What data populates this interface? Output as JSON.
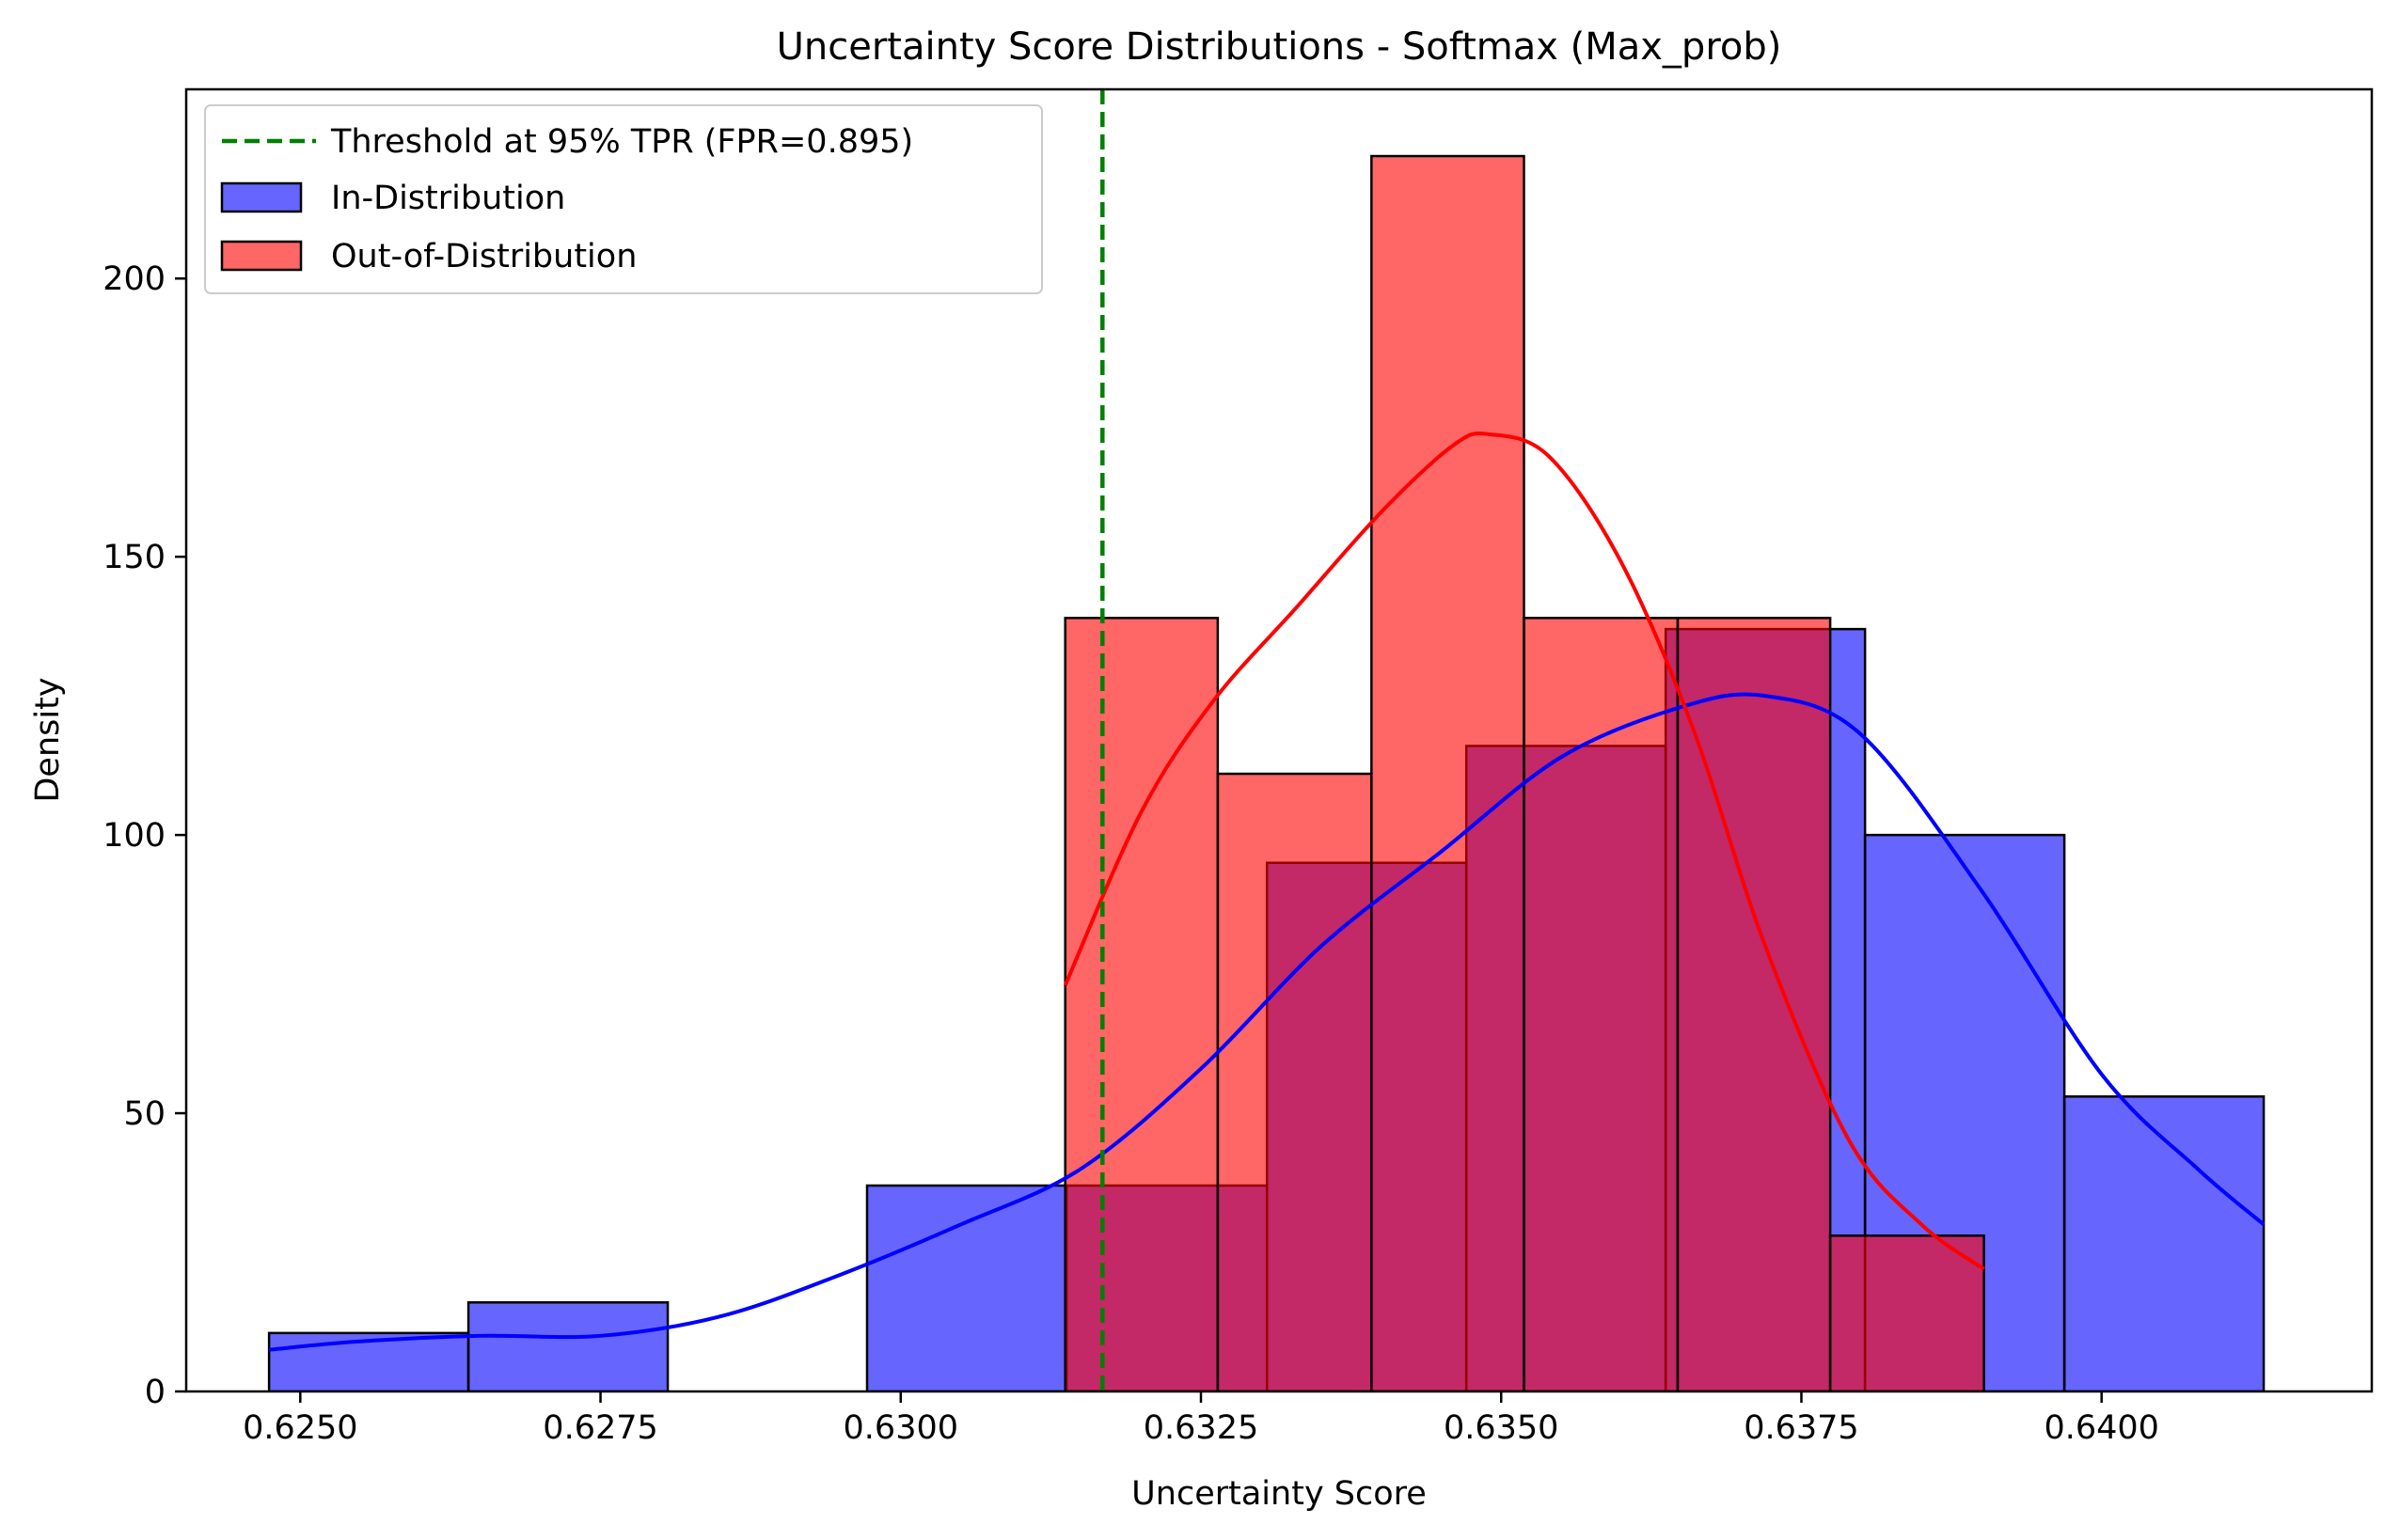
{
  "chart_data": {
    "type": "bar",
    "title": "Uncertainty Score Distributions - Softmax (Max_prob)",
    "xlabel": "Uncertainty Score",
    "ylabel": "Density",
    "xlim": [
      0.62405,
      0.64225
    ],
    "ylim": [
      0,
      234
    ],
    "xticks": [
      0.625,
      0.6275,
      0.63,
      0.6325,
      0.635,
      0.6375,
      0.64
    ],
    "xtick_labels": [
      "0.6250",
      "0.6275",
      "0.6300",
      "0.6325",
      "0.6350",
      "0.6375",
      "0.6400"
    ],
    "yticks": [
      0,
      50,
      100,
      150,
      200
    ],
    "ytick_labels": [
      "0",
      "50",
      "100",
      "150",
      "200"
    ],
    "grid": false,
    "legend_position": "upper-left",
    "threshold": {
      "x": 0.63168,
      "label": "Threshold at 95% TPR (FPR=0.895)",
      "color": "#008000"
    },
    "series": [
      {
        "name": "In-Distribution",
        "kind": "histogram",
        "color": "#0000ff",
        "fill_opacity": 0.6,
        "bin_edges": [
          0.62474,
          0.6264,
          0.62806,
          0.62972,
          0.63138,
          0.63305,
          0.63471,
          0.63637,
          0.63803,
          0.63969,
          0.64135
        ],
        "values": [
          10.5,
          16,
          0,
          37,
          37,
          95,
          116,
          137,
          100,
          53
        ],
        "kde": {
          "x": [
            0.62474,
            0.6255,
            0.6265,
            0.6275,
            0.6285,
            0.6295,
            0.6305,
            0.6315,
            0.6325,
            0.6335,
            0.6345,
            0.6355,
            0.6365,
            0.6372,
            0.638,
            0.639,
            0.64,
            0.6408,
            0.64135
          ],
          "y": [
            7.5,
            9,
            10,
            10,
            13.5,
            21,
            30,
            40,
            58,
            80,
            97,
            114,
            123,
            125,
            118,
            90,
            57,
            40,
            30
          ]
        }
      },
      {
        "name": "Out-of-Distribution",
        "kind": "histogram",
        "color": "#ff0000",
        "fill_opacity": 0.6,
        "bin_edges": [
          0.63137,
          0.63264,
          0.63392,
          0.63519,
          0.63647,
          0.63774,
          0.63902
        ],
        "values": [
          139,
          111,
          222,
          139,
          139,
          28
        ],
        "kde": {
          "x": [
            0.63137,
            0.632,
            0.6326,
            0.6333,
            0.634,
            0.6346,
            0.6349,
            0.6354,
            0.636,
            0.6366,
            0.6372,
            0.6379,
            0.6385,
            0.63902
          ],
          "y": [
            73,
            104,
            124,
            141,
            158,
            170,
            172,
            168,
            149,
            119,
            80,
            45,
            30,
            22
          ]
        }
      }
    ]
  }
}
